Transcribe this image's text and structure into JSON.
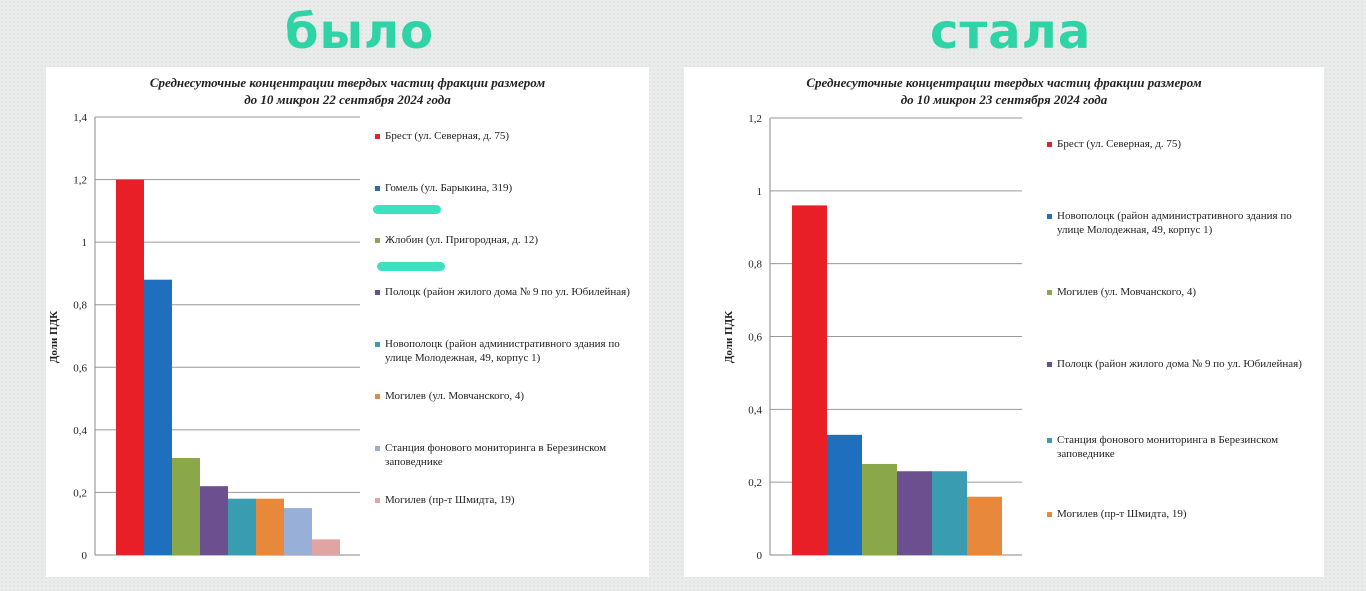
{
  "headline_left": "было",
  "headline_right": "стала",
  "chart_data": [
    {
      "type": "bar",
      "title_line1": "Среднесуточные концентрации твердых частиц фракции размером",
      "title_line2": "до 10 микрон 22 сентября 2024 года",
      "ylabel": "Доли ПДК",
      "ylim": [
        0,
        1.4
      ],
      "yticks": [
        "0",
        "0,2",
        "0,4",
        "0,6",
        "0,8",
        "1",
        "1,2",
        "1,4"
      ],
      "grid": true,
      "legend_position": "right",
      "series": [
        {
          "name": "Брест (ул. Северная, д. 75)",
          "value": 1.2,
          "color": "#e81f26"
        },
        {
          "name": "Гомель (ул. Барыкина, 319)",
          "value": 0.88,
          "color": "#1f6fbf"
        },
        {
          "name": "Жлобин (ул. Пригородная, д. 12)",
          "value": 0.31,
          "color": "#8aa84a"
        },
        {
          "name": "Полоцк (район жилого дома № 9 по ул. Юбилейная)",
          "value": 0.22,
          "color": "#6b4f8e"
        },
        {
          "name": "Новополоцк (район административного здания по улице Молодежная, 49, корпус 1)",
          "value": 0.18,
          "color": "#3a9cb0"
        },
        {
          "name": "Могилев (ул. Мовчанского, 4)",
          "value": 0.18,
          "color": "#e8883a"
        },
        {
          "name": "Станция фонового мониторинга в Березинском заповеднике",
          "value": 0.15,
          "color": "#98b0d8"
        },
        {
          "name": "Могилев (пр-т Шмидта, 19)",
          "value": 0.05,
          "color": "#e2a3a3"
        }
      ]
    },
    {
      "type": "bar",
      "title_line1": "Среднесуточные концентрации твердых частиц фракции размером",
      "title_line2": "до 10 микрон 23 сентября 2024 года",
      "ylabel": "Доли ПДК",
      "ylim": [
        0,
        1.2
      ],
      "yticks": [
        "0",
        "0,2",
        "0,4",
        "0,6",
        "0,8",
        "1",
        "1,2"
      ],
      "grid": true,
      "legend_position": "right",
      "series": [
        {
          "name": "Брест (ул. Северная, д. 75)",
          "value": 0.96,
          "color": "#e81f26"
        },
        {
          "name": "Новополоцк (район административного здания по улице Молодежная, 49, корпус 1)",
          "value": 0.33,
          "color": "#1f6fbf"
        },
        {
          "name": "Могилев (ул. Мовчанского, 4)",
          "value": 0.25,
          "color": "#8aa84a"
        },
        {
          "name": "Полоцк (район жилого дома № 9 по ул. Юбилейная)",
          "value": 0.23,
          "color": "#6b4f8e"
        },
        {
          "name": "Станция фонового мониторинга в Березинском заповеднике",
          "value": 0.23,
          "color": "#3a9cb0"
        },
        {
          "name": "Могилев (пр-т Шмидта, 19)",
          "value": 0.16,
          "color": "#e8883a"
        }
      ]
    }
  ]
}
